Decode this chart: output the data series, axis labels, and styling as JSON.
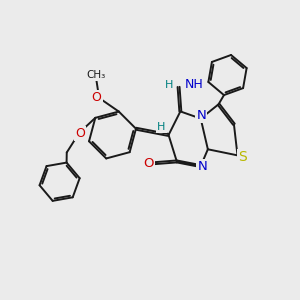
{
  "bg_color": "#ebebeb",
  "bond_color": "#1a1a1a",
  "S_color": "#b8b800",
  "N_color": "#0000cc",
  "O_color": "#cc0000",
  "H_color": "#008080",
  "line_width": 1.4,
  "dbo": 0.055,
  "font_size": 8.5,
  "xlim": [
    -4.2,
    4.2
  ],
  "ylim": [
    -4.0,
    3.8
  ]
}
